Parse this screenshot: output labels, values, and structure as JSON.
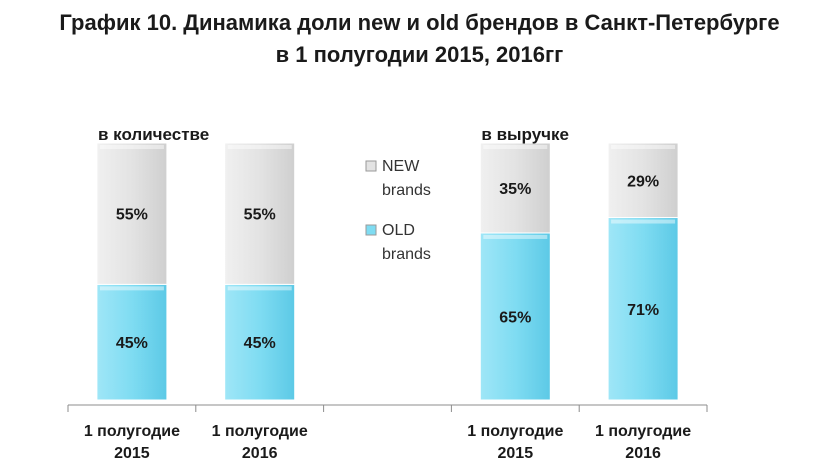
{
  "title_line1": "График 10. Динамика доли new и old брендов в Санкт-Петербурге",
  "title_line2": "в 1 полугодии 2015, 2016гг",
  "chart_data": {
    "type": "bar",
    "stacked": true,
    "normalized_percent": true,
    "categories": [
      "1 полугодие 2015",
      "1 полугодие 2016",
      "",
      "1 полугодие 2015",
      "1 полугодие 2016"
    ],
    "groups": [
      {
        "label": "в количестве",
        "category_indices": [
          0,
          1
        ]
      },
      {
        "label": "в выручке",
        "category_indices": [
          3,
          4
        ]
      }
    ],
    "series": [
      {
        "name": "OLD brands",
        "color": "#7fdcf2",
        "values": [
          45,
          45,
          null,
          65,
          71
        ],
        "labels": [
          "45%",
          "45%",
          "",
          "65%",
          "71%"
        ]
      },
      {
        "name": "NEW brands",
        "color": "#e3e3e3",
        "values": [
          55,
          55,
          null,
          35,
          29
        ],
        "labels": [
          "55%",
          "55%",
          "",
          "35%",
          "29%"
        ]
      }
    ],
    "legend": {
      "placement": "center",
      "entries": [
        {
          "line1": "NEW",
          "line2": "brands",
          "color": "#e3e3e3"
        },
        {
          "line1": "OLD",
          "line2": "brands",
          "color": "#7fdcf2"
        }
      ]
    },
    "ylim": [
      0,
      100
    ],
    "grid": false
  }
}
